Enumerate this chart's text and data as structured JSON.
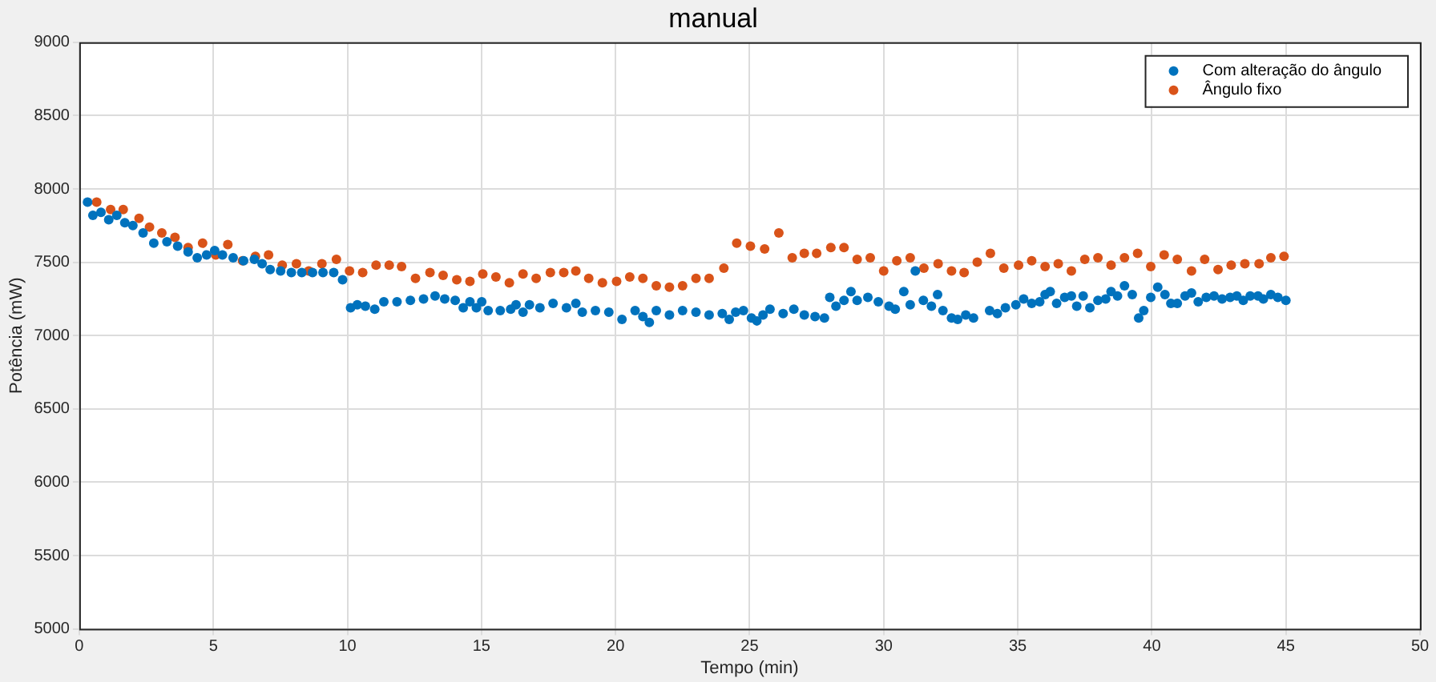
{
  "chart_data": {
    "type": "scatter",
    "title": "manual",
    "xlabel": "Tempo (min)",
    "ylabel": "Potência (mW)",
    "xlim": [
      0,
      50
    ],
    "xticks": [
      0,
      5,
      10,
      15,
      20,
      25,
      30,
      35,
      40,
      45,
      50
    ],
    "ylim": [
      5000,
      9000
    ],
    "yticks": [
      5000,
      5500,
      6000,
      6500,
      7000,
      7500,
      8000,
      8500,
      9000
    ],
    "grid": true,
    "legend": "top right",
    "marker": "circle",
    "series": [
      {
        "name": "Com alteração do ângulo",
        "color": "#0072bd",
        "x": [
          0.31,
          0.51,
          0.81,
          1.1,
          1.4,
          1.7,
          2.0,
          2.38,
          2.78,
          3.27,
          3.67,
          4.06,
          4.4,
          4.75,
          5.05,
          5.34,
          5.74,
          6.13,
          6.53,
          6.82,
          7.12,
          7.51,
          7.91,
          8.3,
          8.7,
          9.09,
          9.49,
          9.82,
          10.12,
          10.37,
          10.67,
          11.02,
          11.36,
          11.85,
          12.35,
          12.84,
          13.27,
          13.63,
          14.02,
          14.32,
          14.57,
          14.81,
          15.01,
          15.25,
          15.7,
          16.09,
          16.29,
          16.55,
          16.79,
          17.18,
          17.67,
          18.17,
          18.52,
          18.76,
          19.25,
          19.75,
          20.24,
          20.73,
          21.02,
          21.26,
          21.52,
          22.01,
          22.5,
          23.0,
          23.49,
          23.98,
          24.24,
          24.48,
          24.77,
          25.07,
          25.27,
          25.5,
          25.76,
          26.25,
          26.65,
          27.04,
          27.44,
          27.79,
          27.99,
          28.22,
          28.52,
          28.78,
          29.01,
          29.41,
          29.8,
          30.2,
          30.43,
          30.75,
          30.99,
          31.18,
          31.48,
          31.78,
          32.01,
          32.21,
          32.53,
          32.76,
          33.06,
          33.35,
          33.95,
          34.24,
          34.54,
          34.93,
          35.22,
          35.52,
          35.82,
          36.02,
          36.21,
          36.45,
          36.75,
          37.0,
          37.2,
          37.44,
          37.69,
          37.99,
          38.28,
          38.48,
          38.72,
          38.98,
          39.27,
          39.51,
          39.7,
          39.96,
          40.22,
          40.49,
          40.71,
          40.95,
          41.24,
          41.48,
          41.73,
          42.03,
          42.32,
          42.62,
          42.92,
          43.17,
          43.41,
          43.67,
          43.96,
          44.16,
          44.44,
          44.7,
          45.0
        ],
        "values": [
          7910,
          7820,
          7840,
          7790,
          7820,
          7770,
          7750,
          7700,
          7630,
          7640,
          7610,
          7570,
          7530,
          7550,
          7580,
          7550,
          7530,
          7510,
          7520,
          7490,
          7450,
          7440,
          7430,
          7430,
          7430,
          7430,
          7430,
          7380,
          7190,
          7210,
          7200,
          7180,
          7230,
          7230,
          7240,
          7250,
          7270,
          7250,
          7240,
          7190,
          7230,
          7190,
          7230,
          7170,
          7170,
          7180,
          7210,
          7160,
          7210,
          7190,
          7220,
          7190,
          7220,
          7160,
          7170,
          7160,
          7110,
          7170,
          7130,
          7090,
          7170,
          7140,
          7170,
          7160,
          7140,
          7150,
          7110,
          7160,
          7170,
          7120,
          7100,
          7140,
          7180,
          7150,
          7180,
          7140,
          7130,
          7120,
          7260,
          7200,
          7240,
          7300,
          7240,
          7260,
          7230,
          7200,
          7180,
          7300,
          7210,
          7440,
          7240,
          7200,
          7280,
          7170,
          7120,
          7110,
          7140,
          7120,
          7170,
          7150,
          7190,
          7210,
          7250,
          7220,
          7230,
          7280,
          7300,
          7220,
          7260,
          7270,
          7200,
          7270,
          7190,
          7240,
          7250,
          7300,
          7270,
          7340,
          7280,
          7120,
          7170,
          7260,
          7330,
          7280,
          7220,
          7220,
          7270,
          7290,
          7230,
          7260,
          7270,
          7250,
          7260,
          7270,
          7240,
          7270,
          7270,
          7250,
          7280,
          7260,
          7240
        ]
      },
      {
        "name": "Ângulo fixo",
        "color": "#d95319",
        "x": [
          0.65,
          1.17,
          1.64,
          2.23,
          2.62,
          3.08,
          3.57,
          4.06,
          4.6,
          5.09,
          5.54,
          6.09,
          6.57,
          7.06,
          7.57,
          8.1,
          8.56,
          9.05,
          9.59,
          10.08,
          10.57,
          11.07,
          11.56,
          12.02,
          12.54,
          13.08,
          13.57,
          14.08,
          14.57,
          15.05,
          15.54,
          16.04,
          16.55,
          17.04,
          17.57,
          18.07,
          18.52,
          19.0,
          19.51,
          20.04,
          20.53,
          21.02,
          21.52,
          22.01,
          22.5,
          23.0,
          23.49,
          24.04,
          24.52,
          25.03,
          25.56,
          26.09,
          26.59,
          27.04,
          27.5,
          28.03,
          28.52,
          29.01,
          29.5,
          30.0,
          30.49,
          30.99,
          31.5,
          32.03,
          32.53,
          33.0,
          33.49,
          33.98,
          34.48,
          35.03,
          35.52,
          36.02,
          36.51,
          37.0,
          37.5,
          37.99,
          38.48,
          38.98,
          39.47,
          39.96,
          40.46,
          40.95,
          41.48,
          41.97,
          42.47,
          42.96,
          43.47,
          44.0,
          44.44,
          44.93
        ],
        "values": [
          7910,
          7860,
          7860,
          7800,
          7740,
          7700,
          7670,
          7600,
          7630,
          7550,
          7620,
          7510,
          7540,
          7550,
          7480,
          7490,
          7440,
          7490,
          7520,
          7440,
          7430,
          7480,
          7480,
          7470,
          7390,
          7430,
          7410,
          7380,
          7370,
          7420,
          7400,
          7360,
          7420,
          7390,
          7430,
          7430,
          7440,
          7390,
          7360,
          7370,
          7400,
          7390,
          7340,
          7330,
          7340,
          7390,
          7390,
          7460,
          7630,
          7610,
          7590,
          7700,
          7530,
          7560,
          7560,
          7600,
          7600,
          7520,
          7530,
          7440,
          7510,
          7530,
          7460,
          7490,
          7440,
          7430,
          7500,
          7560,
          7460,
          7480,
          7510,
          7470,
          7490,
          7440,
          7520,
          7530,
          7480,
          7530,
          7560,
          7470,
          7550,
          7520,
          7440,
          7520,
          7450,
          7480,
          7490,
          7490,
          7530,
          7540
        ]
      }
    ]
  }
}
